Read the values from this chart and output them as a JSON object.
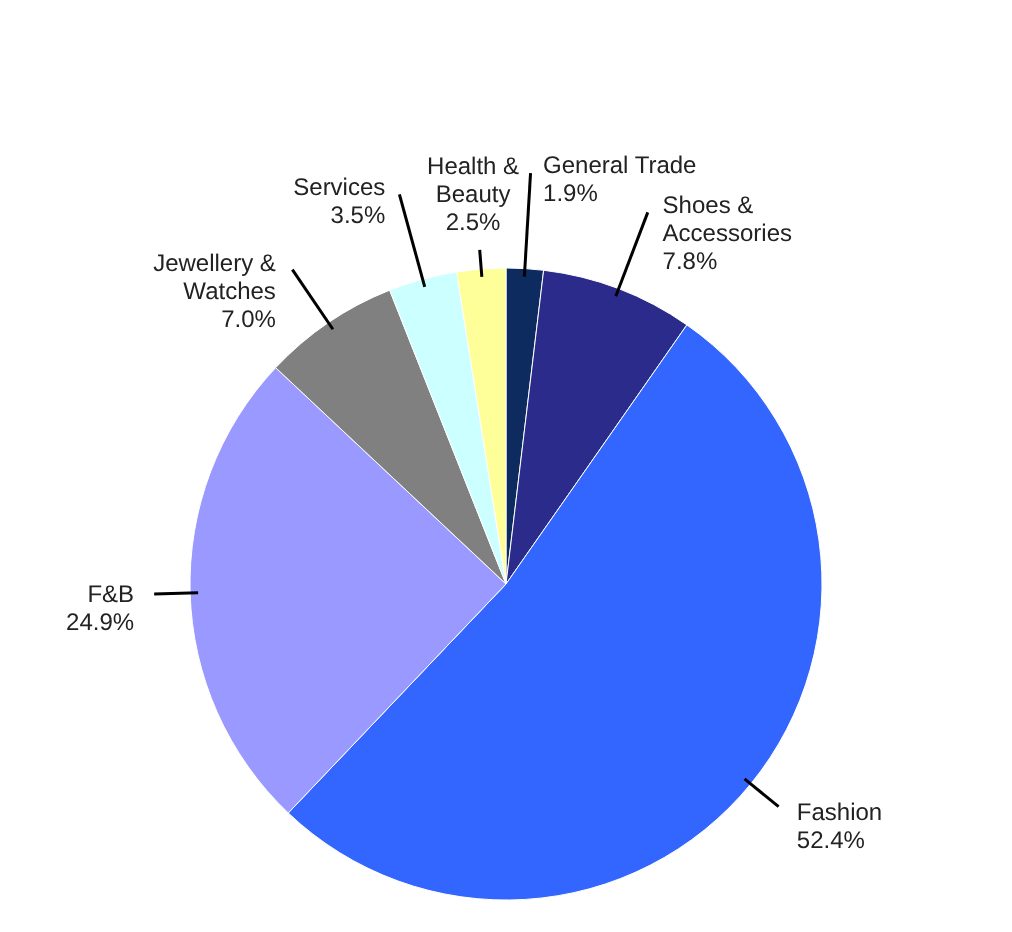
{
  "chart_data": {
    "type": "pie",
    "categories": [
      "General Trade",
      "Shoes & Accessories",
      "Fashion",
      "F&B",
      "Jewellery & Watches",
      "Services",
      "Health & Beauty"
    ],
    "values": [
      1.9,
      7.8,
      52.4,
      24.9,
      7.0,
      3.5,
      2.5
    ],
    "value_labels": [
      "1.9%",
      "7.8%",
      "52.4%",
      "24.9%",
      "7.0%",
      "3.5%",
      "2.5%"
    ],
    "colors": [
      "#0d2b5e",
      "#2b2b8c",
      "#3366ff",
      "#9999ff",
      "#808080",
      "#ccffff",
      "#ffff99"
    ],
    "data_labels": true
  }
}
